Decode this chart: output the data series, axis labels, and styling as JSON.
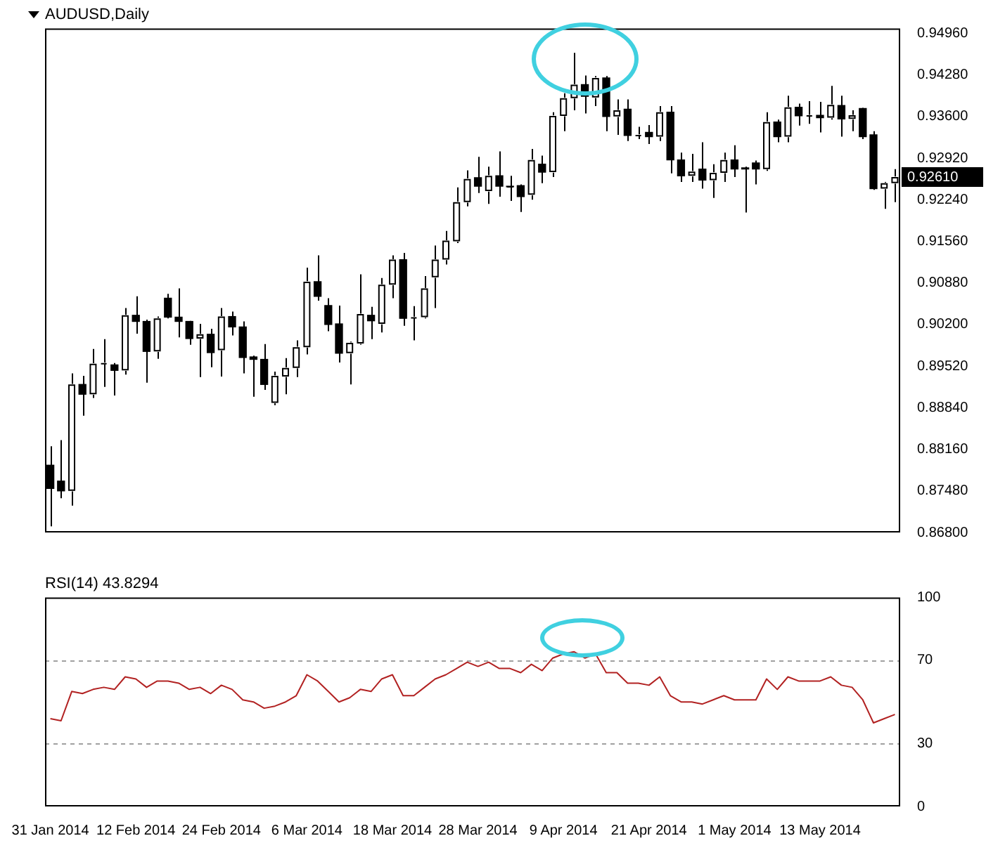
{
  "chart_data": [
    {
      "type": "candlestick",
      "title": "AUDUSD,Daily",
      "categories": [
        null,
        null,
        null,
        null,
        null,
        null,
        null,
        null,
        null,
        null,
        null,
        null,
        null,
        null,
        null,
        null,
        null,
        null,
        null,
        null,
        null,
        null,
        null,
        null,
        null,
        null,
        null,
        null,
        null,
        null,
        null,
        null,
        null,
        null,
        null,
        null,
        null,
        null,
        null,
        null,
        null,
        null,
        null,
        null,
        null,
        null,
        null,
        null,
        null,
        null,
        null,
        null,
        null,
        null,
        null,
        null,
        null,
        null,
        null,
        null,
        null,
        null,
        null,
        null,
        null,
        null,
        null,
        null,
        null,
        null,
        null,
        null,
        null,
        null,
        null,
        null,
        null,
        null,
        null,
        null
      ],
      "ohlc": [
        [
          0.879,
          0.8821,
          0.869,
          0.8752
        ],
        [
          0.8764,
          0.8831,
          0.8736,
          0.8748
        ],
        [
          0.8748,
          0.894,
          0.8724,
          0.8922
        ],
        [
          0.8922,
          0.8936,
          0.8871,
          0.8906
        ],
        [
          0.8906,
          0.898,
          0.89,
          0.8956
        ],
        [
          0.8956,
          0.8996,
          0.8918,
          0.8957
        ],
        [
          0.8954,
          0.8957,
          0.8904,
          0.8945
        ],
        [
          0.8945,
          0.9047,
          0.8938,
          0.9035
        ],
        [
          0.9035,
          0.9066,
          0.9005,
          0.9025
        ],
        [
          0.9025,
          0.9028,
          0.8925,
          0.8976
        ],
        [
          0.8976,
          0.9033,
          0.8964,
          0.903
        ],
        [
          0.9063,
          0.907,
          0.903,
          0.9032
        ],
        [
          0.9032,
          0.9079,
          0.8999,
          0.9025
        ],
        [
          0.9025,
          0.9026,
          0.8987,
          0.8997
        ],
        [
          0.8997,
          0.9021,
          0.8934,
          0.9004
        ],
        [
          0.9004,
          0.9013,
          0.895,
          0.8974
        ],
        [
          0.8978,
          0.9047,
          0.8935,
          0.9033
        ],
        [
          0.9033,
          0.9041,
          0.9002,
          0.9016
        ],
        [
          0.9016,
          0.9025,
          0.894,
          0.8966
        ],
        [
          0.8967,
          0.8969,
          0.8902,
          0.8963
        ],
        [
          0.8963,
          0.8988,
          0.8913,
          0.8922
        ],
        [
          0.8892,
          0.8943,
          0.8888,
          0.8936
        ],
        [
          0.8935,
          0.8965,
          0.8906,
          0.8949
        ],
        [
          0.8949,
          0.8994,
          0.8934,
          0.8983
        ],
        [
          0.8983,
          0.9113,
          0.8971,
          0.909
        ],
        [
          0.909,
          0.9133,
          0.9059,
          0.9066
        ],
        [
          0.9051,
          0.9063,
          0.9009,
          0.902
        ],
        [
          0.9021,
          0.9051,
          0.8958,
          0.8973
        ],
        [
          0.8973,
          0.8992,
          0.8922,
          0.899
        ],
        [
          0.8989,
          0.9102,
          0.8987,
          0.9037
        ],
        [
          0.9035,
          0.9049,
          0.8996,
          0.9026
        ],
        [
          0.9021,
          0.9096,
          0.9007,
          0.9085
        ],
        [
          0.9085,
          0.9133,
          0.9063,
          0.9126
        ],
        [
          0.9126,
          0.9137,
          0.9018,
          0.903
        ],
        [
          0.9031,
          0.905,
          0.8994,
          0.9032
        ],
        [
          0.9032,
          0.9099,
          0.903,
          0.9079
        ],
        [
          0.9097,
          0.9149,
          0.9047,
          0.9126
        ],
        [
          0.9126,
          0.9173,
          0.9118,
          0.9157
        ],
        [
          0.9156,
          0.9244,
          0.9153,
          0.922
        ],
        [
          0.922,
          0.9272,
          0.9213,
          0.9258
        ],
        [
          0.926,
          0.9294,
          0.9235,
          0.9246
        ],
        [
          0.9238,
          0.9278,
          0.9217,
          0.9263
        ],
        [
          0.9263,
          0.9303,
          0.9229,
          0.9246
        ],
        [
          0.9246,
          0.9263,
          0.9222,
          0.9245
        ],
        [
          0.9247,
          0.9249,
          0.9204,
          0.9229
        ],
        [
          0.9232,
          0.9307,
          0.9224,
          0.9289
        ],
        [
          0.9282,
          0.9296,
          0.9251,
          0.9269
        ],
        [
          0.9269,
          0.9367,
          0.9261,
          0.9361
        ],
        [
          0.9361,
          0.9398,
          0.9336,
          0.939
        ],
        [
          0.939,
          0.9464,
          0.937,
          0.9412
        ],
        [
          0.9412,
          0.9427,
          0.9365,
          0.9393
        ],
        [
          0.9391,
          0.9426,
          0.9377,
          0.9423
        ],
        [
          0.9423,
          0.9426,
          0.9336,
          0.936
        ],
        [
          0.936,
          0.9388,
          0.933,
          0.937
        ],
        [
          0.9372,
          0.9388,
          0.932,
          0.9329
        ],
        [
          0.9329,
          0.9343,
          0.9323,
          0.933
        ],
        [
          0.9334,
          0.9346,
          0.9315,
          0.9327
        ],
        [
          0.9327,
          0.9377,
          0.932,
          0.9367
        ],
        [
          0.9367,
          0.9377,
          0.9267,
          0.9289
        ],
        [
          0.9289,
          0.9301,
          0.9253,
          0.9263
        ],
        [
          0.9263,
          0.9299,
          0.9253,
          0.927
        ],
        [
          0.9274,
          0.9318,
          0.9242,
          0.9256
        ],
        [
          0.9256,
          0.9282,
          0.9227,
          0.9268
        ],
        [
          0.9268,
          0.9301,
          0.9253,
          0.9289
        ],
        [
          0.9289,
          0.9313,
          0.9261,
          0.9274
        ],
        [
          0.9276,
          0.9278,
          0.9203,
          0.9274
        ],
        [
          0.9284,
          0.9288,
          0.9249,
          0.9274
        ],
        [
          0.9274,
          0.9367,
          0.9271,
          0.9351
        ],
        [
          0.9351,
          0.9355,
          0.9318,
          0.9327
        ],
        [
          0.9327,
          0.9394,
          0.9318,
          0.9375
        ],
        [
          0.9375,
          0.9381,
          0.9345,
          0.9361
        ],
        [
          0.9361,
          0.9385,
          0.9348,
          0.9362
        ],
        [
          0.9362,
          0.9384,
          0.9334,
          0.9358
        ],
        [
          0.9358,
          0.941,
          0.9355,
          0.9379
        ],
        [
          0.9378,
          0.9394,
          0.9327,
          0.9356
        ],
        [
          0.9356,
          0.937,
          0.9336,
          0.9362
        ],
        [
          0.9373,
          0.9374,
          0.9323,
          0.9327
        ],
        [
          0.933,
          0.9336,
          0.924,
          0.9242
        ],
        [
          0.9242,
          0.9253,
          0.9209,
          0.9251
        ],
        [
          0.9251,
          0.9274,
          0.922,
          0.9261
        ]
      ],
      "colors": [
        "#000000",
        "#000000",
        "#ffffff",
        "#000000",
        "#ffffff",
        "#ffffff",
        "#000000",
        "#ffffff",
        "#000000",
        "#000000",
        "#ffffff",
        "#000000",
        "#000000",
        "#000000",
        "#ffffff",
        "#000000",
        "#ffffff",
        "#000000",
        "#000000",
        "#000000",
        "#000000",
        "#ffffff",
        "#ffffff",
        "#ffffff",
        "#ffffff",
        "#000000",
        "#000000",
        "#000000",
        "#ffffff",
        "#ffffff",
        "#000000",
        "#ffffff",
        "#ffffff",
        "#000000",
        "#ffffff",
        "#ffffff",
        "#ffffff",
        "#ffffff",
        "#ffffff",
        "#ffffff",
        "#000000",
        "#ffffff",
        "#000000",
        "#000000",
        "#000000",
        "#ffffff",
        "#000000",
        "#ffffff",
        "#ffffff",
        "#ffffff",
        "#000000",
        "#ffffff",
        "#000000",
        "#ffffff",
        "#000000",
        "#ffffff",
        "#000000",
        "#ffffff",
        "#000000",
        "#000000",
        "#ffffff",
        "#000000",
        "#ffffff",
        "#ffffff",
        "#000000",
        "#000000",
        "#000000",
        "#ffffff",
        "#000000",
        "#ffffff",
        "#000000",
        "#ffffff",
        "#000000",
        "#ffffff",
        "#000000",
        "#ffffff",
        "#000000",
        "#000000",
        "#ffffff",
        "#ffffff"
      ],
      "ylim": [
        0.868,
        0.9504
      ],
      "yticks": [
        {
          "value": 0.868,
          "label": "0.86800"
        },
        {
          "value": 0.8748,
          "label": "0.87480"
        },
        {
          "value": 0.8816,
          "label": "0.88160"
        },
        {
          "value": 0.8884,
          "label": "0.88840"
        },
        {
          "value": 0.8952,
          "label": "0.89520"
        },
        {
          "value": 0.902,
          "label": "0.90200"
        },
        {
          "value": 0.9088,
          "label": "0.90880"
        },
        {
          "value": 0.9156,
          "label": "0.91560"
        },
        {
          "value": 0.9224,
          "label": "0.92240"
        },
        {
          "value": 0.9292,
          "label": "0.92920"
        },
        {
          "value": 0.936,
          "label": "0.93600"
        },
        {
          "value": 0.9428,
          "label": "0.94280"
        },
        {
          "value": 0.9496,
          "label": "0.94960"
        }
      ],
      "annotations": [
        "0.92610"
      ],
      "grid": false,
      "legend": false
    },
    {
      "type": "line",
      "title": "RSI(14) 43.8294",
      "categories": [
        "31 Jan 2014",
        null,
        null,
        null,
        null,
        null,
        null,
        null,
        "12 Feb 2014",
        null,
        null,
        null,
        null,
        null,
        null,
        null,
        "24 Feb 2014",
        null,
        null,
        null,
        null,
        null,
        null,
        null,
        "6 Mar 2014",
        null,
        null,
        null,
        null,
        null,
        null,
        null,
        "18 Mar 2014",
        null,
        null,
        null,
        null,
        null,
        null,
        null,
        "28 Mar 2014",
        null,
        null,
        null,
        null,
        null,
        null,
        null,
        "9 Apr 2014",
        null,
        null,
        null,
        null,
        null,
        null,
        null,
        "21 Apr 2014",
        null,
        null,
        null,
        null,
        null,
        null,
        null,
        "1 May 2014",
        null,
        null,
        null,
        null,
        null,
        null,
        null,
        "13 May 2014",
        null,
        null,
        null,
        null,
        null,
        null,
        null
      ],
      "series": [
        {
          "color": "#b22222",
          "values": [
            42,
            41,
            55,
            54,
            56,
            57,
            56,
            62,
            61,
            57,
            60,
            60,
            59,
            56,
            57,
            54,
            58,
            56,
            51,
            50,
            47,
            48,
            50,
            53,
            63,
            60,
            55,
            50,
            52,
            56,
            55,
            61,
            63,
            53,
            53,
            57,
            61,
            63,
            66,
            69,
            67,
            69,
            66,
            66,
            64,
            68,
            65,
            71,
            73,
            74,
            71,
            73,
            64,
            64,
            59,
            59,
            58,
            62,
            53,
            50,
            50,
            49,
            51,
            53,
            51,
            51,
            51,
            61,
            56,
            62,
            60,
            60,
            60,
            62,
            58,
            57,
            51,
            40,
            42,
            44
          ]
        }
      ],
      "ylim": [
        0,
        100
      ],
      "yticks": [
        0,
        30,
        70,
        100
      ],
      "ref_lines": [
        {
          "axis": "y",
          "value": 70,
          "color": "#a0a0a0",
          "line_style": "dashed"
        },
        {
          "axis": "y",
          "value": 30,
          "color": "#a0a0a0",
          "line_style": "dashed"
        }
      ],
      "marker": "none",
      "line_style": "solid",
      "grid": false,
      "legend": false
    }
  ]
}
